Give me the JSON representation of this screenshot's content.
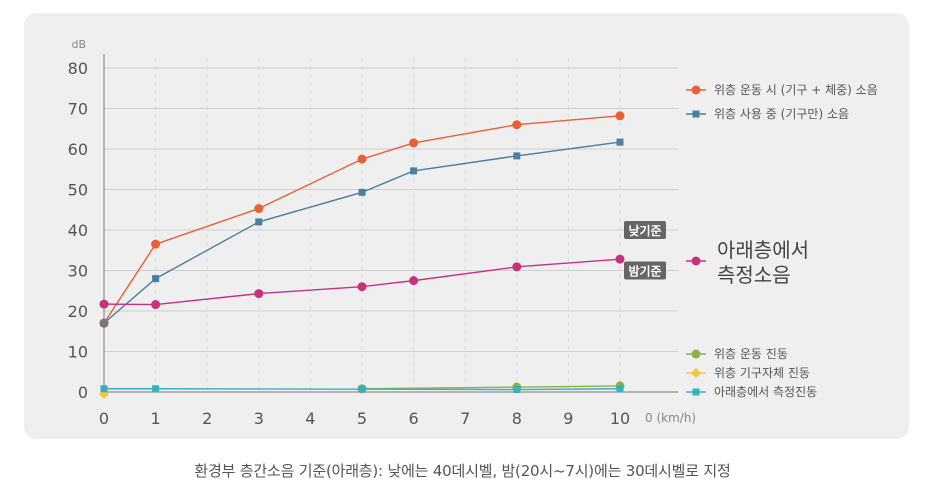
{
  "chart_data": {
    "type": "line",
    "ylabel": "dB",
    "xlabel": "0 (km/h)",
    "xlim": [
      0,
      10
    ],
    "ylim": [
      0,
      80
    ],
    "x_ticks": [
      0,
      1,
      2,
      3,
      4,
      5,
      6,
      7,
      8,
      9,
      10
    ],
    "x_tick_labels": [
      "0",
      "1",
      "2",
      "3",
      "4",
      "5",
      "6",
      "7",
      "8",
      "9",
      "10"
    ],
    "y_ticks": [
      0,
      10,
      20,
      30,
      40,
      50,
      60,
      70,
      80
    ],
    "y_tick_labels": [
      "0",
      "10",
      "20",
      "30",
      "40",
      "50",
      "60",
      "70",
      "80"
    ],
    "grid": true,
    "legend_position": "right",
    "reference_lines": [
      {
        "label": "낮기준",
        "value": 40
      },
      {
        "label": "밤기준",
        "value": 30
      }
    ],
    "series": [
      {
        "name": "위층 운동 시 (기구 + 체중) 소음",
        "color": "#e8603a",
        "marker": "circle",
        "x": [
          0,
          1,
          3,
          5,
          6,
          8,
          10
        ],
        "values": [
          17,
          36.5,
          45.3,
          57.5,
          61.5,
          66,
          68.2
        ]
      },
      {
        "name": "위층 사용 중 (기구만) 소음",
        "color": "#4a7fa0",
        "marker": "square",
        "x": [
          0,
          1,
          3,
          5,
          6,
          8,
          10
        ],
        "values": [
          17,
          28,
          42,
          49.3,
          54.6,
          58.3,
          61.7
        ]
      },
      {
        "name": "아래층에서\n측정소음",
        "color": "#c8327a",
        "marker": "circle",
        "x": [
          0,
          1,
          3,
          5,
          6,
          8,
          10
        ],
        "values": [
          21.7,
          21.6,
          24.3,
          26,
          27.5,
          30.9,
          32.8
        ]
      },
      {
        "name": "위층 운동 진동",
        "color": "#8cb13f",
        "marker": "circle",
        "x": [
          5,
          8,
          10
        ],
        "values": [
          0.8,
          1.2,
          1.5
        ]
      },
      {
        "name": "위층 기구자체 진동",
        "color": "#f0c93a",
        "marker": "diamond",
        "x": [
          0
        ],
        "values": [
          -0.5
        ]
      },
      {
        "name": "아래층에서 측정진동",
        "color": "#35b0c3",
        "marker": "square",
        "x": [
          0,
          1,
          5,
          8,
          10
        ],
        "values": [
          0.8,
          0.8,
          0.7,
          0.6,
          0.8
        ]
      }
    ]
  },
  "caption": "환경부 층간소음 기준(아래층): 낮에는 40데시벨, 밤(20시~7시)에는 30데시벨로 지정",
  "colors": {
    "panel": "#efefef",
    "grid": "#cfcfcf",
    "axis": "#7a7a7a",
    "badge": "#666666"
  }
}
